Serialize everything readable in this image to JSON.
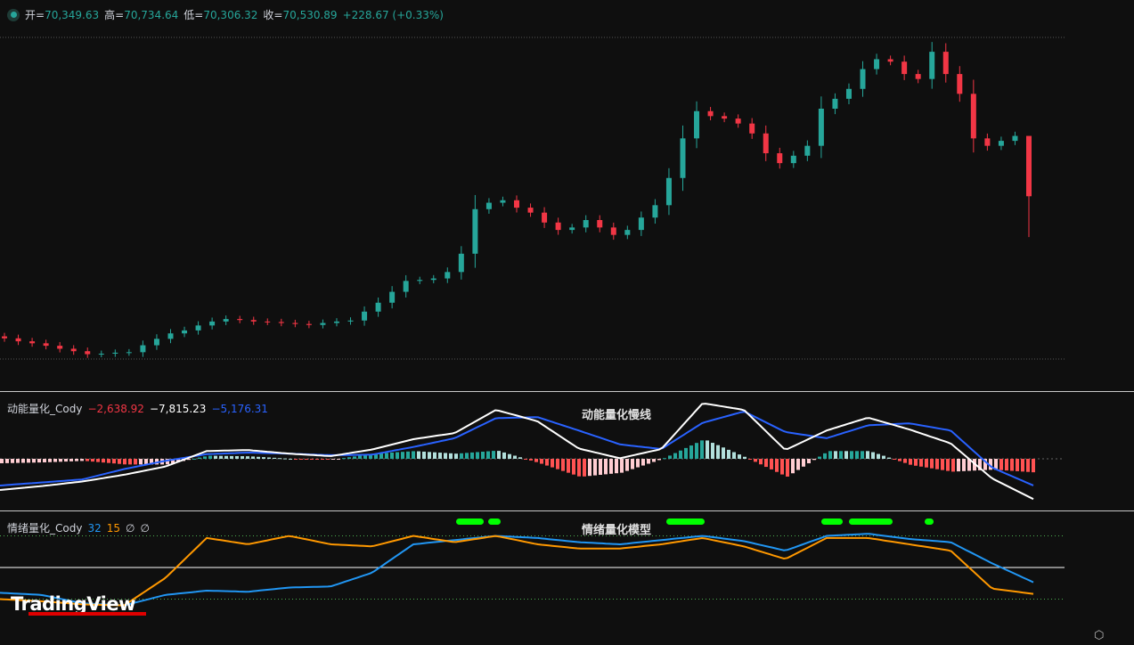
{
  "header": {
    "open_label": "开=",
    "open": "70,349.63",
    "high_label": "高=",
    "high": "70,734.64",
    "low_label": "低=",
    "low": "70,306.32",
    "close_label": "收=",
    "close": "70,530.89",
    "change": "+228.67 (+0.33%)"
  },
  "momentum": {
    "name": "动能量化_Cody",
    "hist_value": "−2,638.92",
    "fast_value": "−7,815.23",
    "slow_value": "−5,176.31",
    "annotation": "动能量化慢线"
  },
  "sentiment": {
    "name": "情绪量化_Cody",
    "param1": "32",
    "param2": "15",
    "param3": "∅",
    "param4": "∅",
    "annotation": "情绪量化模型"
  },
  "brand": "TradingView",
  "colors": {
    "up": "#26a69a",
    "down": "#f23645",
    "fast": "#ffffff",
    "slow": "#2962ff",
    "sent_blue": "#2196f3",
    "sent_orange": "#ff9800",
    "signal": "#00ff00"
  },
  "chart_data": [
    {
      "type": "candlestick",
      "closes": [
        67660,
        67600,
        67560,
        67510,
        67450,
        67400,
        67340,
        67350,
        67370,
        67380,
        67520,
        67650,
        67760,
        67820,
        67920,
        68000,
        68050,
        68030,
        68000,
        67990,
        67970,
        67950,
        67930,
        67970,
        68000,
        68020,
        68200,
        68380,
        68600,
        68820,
        68840,
        68870,
        69000,
        69370,
        70270,
        70400,
        70450,
        70300,
        70200,
        70000,
        69850,
        69900,
        70050,
        69900,
        69750,
        69850,
        70100,
        70350,
        70900,
        71700,
        72250,
        72150,
        72100,
        72000,
        71800,
        71400,
        71200,
        71350,
        71550,
        72300,
        72500,
        72700,
        73100,
        73300,
        73250,
        73000,
        72900,
        73450,
        73000,
        72600,
        71700,
        71550,
        71650,
        71750,
        70530.89
      ],
      "last": {
        "open": 70349.63,
        "high": 70734.64,
        "low": 70306.32,
        "close": 70530.89
      }
    },
    {
      "type": "line+histogram",
      "fast": [
        -6055,
        -5300,
        -4400,
        -3100,
        -1500,
        1500,
        1700,
        1000,
        520,
        1800,
        3800,
        5000,
        9500,
        7300,
        2000,
        100,
        1900,
        10800,
        9500,
        1700,
        5500,
        8000,
        5700,
        3000,
        -3800,
        -7815.23
      ],
      "slow": [
        -5190,
        -4600,
        -4000,
        -2000,
        -400,
        900,
        1211,
        1000,
        700,
        800,
        2300,
        4000,
        7900,
        8100,
        5500,
        2800,
        1900,
        7000,
        9200,
        5200,
        4000,
        6500,
        6900,
        5500,
        -1700,
        -5176.31
      ]
    },
    {
      "type": "line",
      "blue": [
        26,
        24,
        16,
        14,
        24,
        28,
        27,
        31,
        32,
        45,
        72,
        76,
        80,
        78,
        74,
        72,
        76,
        80,
        75,
        66,
        80,
        82,
        77,
        74,
        54,
        36
      ],
      "orange": [
        20,
        18,
        15,
        14,
        40,
        78,
        72,
        80,
        72,
        70,
        80,
        74,
        80,
        72,
        68,
        68,
        72,
        78,
        70,
        58,
        78,
        78,
        72,
        66,
        30,
        25
      ],
      "levels": [
        80,
        50,
        20
      ]
    }
  ]
}
